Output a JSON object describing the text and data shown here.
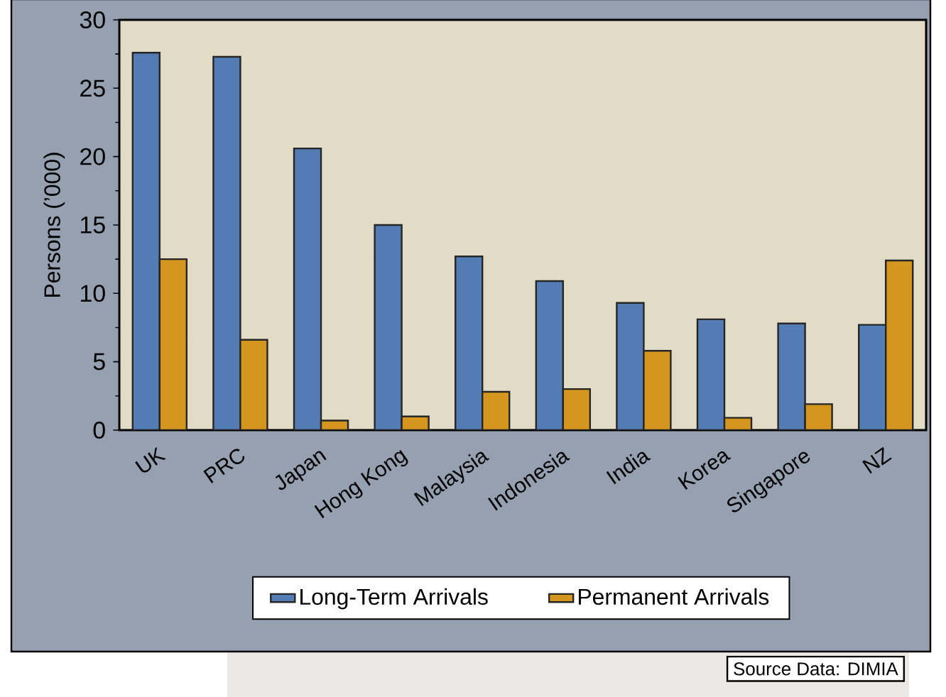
{
  "chart_data": {
    "type": "bar",
    "ylabel": "Persons (’000)",
    "categories": [
      "UK",
      "PRC",
      "Japan",
      "Hong Kong",
      "Malaysia",
      "Indonesia",
      "India",
      "Korea",
      "Singapore",
      "NZ"
    ],
    "series": [
      {
        "name": "Long-Term Arrivals",
        "color": "#537bb4",
        "values": [
          27.6,
          27.3,
          20.6,
          15.0,
          12.7,
          10.9,
          9.3,
          8.1,
          7.8,
          7.7
        ]
      },
      {
        "name": "Permanent Arrivals",
        "color": "#d4961e",
        "values": [
          12.5,
          6.6,
          0.7,
          1.0,
          2.8,
          3.0,
          5.8,
          0.9,
          1.9,
          12.4
        ]
      }
    ],
    "ylim": [
      0,
      30
    ],
    "yticks": [
      0,
      5,
      10,
      15,
      20,
      25,
      30
    ],
    "grid": false,
    "legend": "bottom",
    "annotations": [
      "Source Data: DIMIA"
    ]
  }
}
